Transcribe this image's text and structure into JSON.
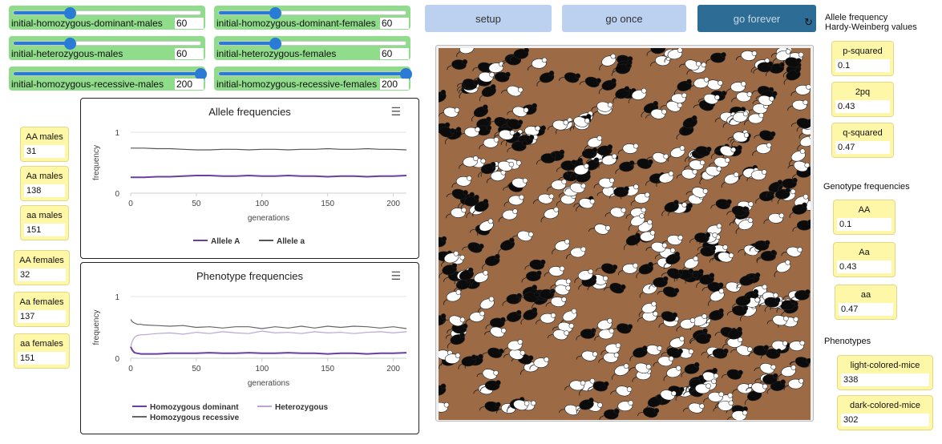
{
  "sliders": [
    {
      "id": "initial-homozygous-dominant-males",
      "label": "initial-homozygous-dominant-males",
      "value": "60",
      "fraction": 0.3
    },
    {
      "id": "initial-homozygous-dominant-females",
      "label": "initial-homozygous-dominant-females",
      "value": "60",
      "fraction": 0.3
    },
    {
      "id": "initial-heterozygous-males",
      "label": "initial-heterozygous-males",
      "value": "60",
      "fraction": 0.3
    },
    {
      "id": "initial-heterozygous-females",
      "label": "initial-heterozygous-females",
      "value": "60",
      "fraction": 0.3
    },
    {
      "id": "initial-homozygous-recessive-males",
      "label": "initial-homozygous-recessive-males",
      "value": "200",
      "fraction": 1.0
    },
    {
      "id": "initial-homozygous-recessive-females",
      "label": "initial-homozygous-recessive-females",
      "value": "200",
      "fraction": 1.0
    }
  ],
  "buttons": {
    "setup": "setup",
    "go_once": "go once",
    "go_forever": "go forever",
    "go_forever_icon": "reload-icon"
  },
  "left_monitors": [
    {
      "label": "AA males",
      "value": "31"
    },
    {
      "label": "Aa males",
      "value": "138"
    },
    {
      "label": "aa males",
      "value": "151"
    },
    {
      "label": "AA females",
      "value": "32"
    },
    {
      "label": "Aa females",
      "value": "137"
    },
    {
      "label": "aa females",
      "value": "151"
    }
  ],
  "right_panel": {
    "hw_note_line1": "Allele frequency",
    "hw_note_line2": "Hardy-Weinberg values",
    "hw_monitors": [
      {
        "label": "p-squared",
        "value": "0.1"
      },
      {
        "label": "2pq",
        "value": "0.43"
      },
      {
        "label": "q-squared",
        "value": "0.47"
      }
    ],
    "genotype_note": "Genotype frequencies",
    "genotype_monitors": [
      {
        "label": "AA",
        "value": "0.1"
      },
      {
        "label": "Aa",
        "value": "0.43"
      },
      {
        "label": "aa",
        "value": "0.47"
      }
    ],
    "phenotype_note": "Phenotypes",
    "phenotype_monitors": [
      {
        "label": "light-colored-mice",
        "value": "338"
      },
      {
        "label": "dark-colored-mice",
        "value": "302"
      }
    ]
  },
  "colors": {
    "slider_bg": "#8fdc8a",
    "slider_accent": "#2a7bd6",
    "button_light": "#bcd0f0",
    "button_dark": "#2d6d95",
    "monitor_bg": "#fff7a8",
    "world_ground": "#9c6a44",
    "allele_A": "#6a3fa0",
    "allele_a": "#555555",
    "pheno_dominant": "#6a3fa0",
    "pheno_het": "#b9a6d6",
    "pheno_recessive": "#666666"
  },
  "chart_data": [
    {
      "type": "line",
      "title": "Allele frequencies",
      "xlabel": "generations",
      "ylabel": "frequency",
      "xlim": [
        0,
        210
      ],
      "ylim": [
        0,
        1
      ],
      "xticks": [
        "0",
        "50",
        "100",
        "150",
        "200"
      ],
      "yticks": [
        "0",
        "1"
      ],
      "grid": true,
      "legend_position": "bottom",
      "menu_icon": "hamburger-menu-icon",
      "series": [
        {
          "name": "Allele A",
          "color": "#6a3fa0",
          "x": [
            0,
            10,
            20,
            30,
            40,
            50,
            60,
            70,
            80,
            90,
            100,
            110,
            120,
            130,
            140,
            150,
            160,
            170,
            180,
            190,
            200,
            210
          ],
          "y": [
            0.26,
            0.26,
            0.27,
            0.27,
            0.28,
            0.29,
            0.29,
            0.28,
            0.28,
            0.29,
            0.28,
            0.28,
            0.29,
            0.28,
            0.28,
            0.27,
            0.28,
            0.28,
            0.27,
            0.28,
            0.28,
            0.29
          ]
        },
        {
          "name": "Allele a",
          "color": "#555555",
          "x": [
            0,
            10,
            20,
            30,
            40,
            50,
            60,
            70,
            80,
            90,
            100,
            110,
            120,
            130,
            140,
            150,
            160,
            170,
            180,
            190,
            200,
            210
          ],
          "y": [
            0.74,
            0.74,
            0.73,
            0.73,
            0.72,
            0.71,
            0.71,
            0.72,
            0.72,
            0.71,
            0.72,
            0.72,
            0.71,
            0.72,
            0.72,
            0.73,
            0.72,
            0.72,
            0.73,
            0.72,
            0.72,
            0.71
          ]
        }
      ]
    },
    {
      "type": "line",
      "title": "Phenotype frequencies",
      "xlabel": "generations",
      "ylabel": "frequency",
      "xlim": [
        0,
        210
      ],
      "ylim": [
        0,
        1
      ],
      "xticks": [
        "0",
        "50",
        "100",
        "150",
        "200"
      ],
      "yticks": [
        "0",
        "1"
      ],
      "grid": true,
      "legend_position": "bottom",
      "menu_icon": "hamburger-menu-icon",
      "series": [
        {
          "name": "Homozygous dominant",
          "color": "#6a3fa0",
          "x": [
            0,
            1,
            2,
            3,
            5,
            8,
            10,
            20,
            30,
            40,
            50,
            60,
            70,
            80,
            90,
            100,
            110,
            120,
            130,
            140,
            150,
            160,
            170,
            180,
            190,
            200,
            210
          ],
          "y": [
            0.19,
            0.14,
            0.11,
            0.09,
            0.08,
            0.07,
            0.07,
            0.07,
            0.08,
            0.08,
            0.08,
            0.09,
            0.08,
            0.08,
            0.09,
            0.08,
            0.08,
            0.09,
            0.08,
            0.08,
            0.07,
            0.08,
            0.08,
            0.07,
            0.08,
            0.08,
            0.09
          ]
        },
        {
          "name": "Heterozygous",
          "color": "#b9a6d6",
          "x": [
            0,
            1,
            2,
            3,
            5,
            8,
            10,
            20,
            30,
            40,
            50,
            60,
            70,
            80,
            90,
            100,
            110,
            120,
            130,
            140,
            150,
            160,
            170,
            180,
            190,
            200,
            210
          ],
          "y": [
            0.18,
            0.26,
            0.31,
            0.34,
            0.37,
            0.38,
            0.38,
            0.4,
            0.41,
            0.39,
            0.42,
            0.4,
            0.43,
            0.41,
            0.4,
            0.44,
            0.41,
            0.42,
            0.4,
            0.43,
            0.41,
            0.42,
            0.4,
            0.42,
            0.43,
            0.41,
            0.43
          ]
        },
        {
          "name": "Homozygous recessive",
          "color": "#666666",
          "x": [
            0,
            1,
            2,
            3,
            5,
            8,
            10,
            20,
            30,
            40,
            50,
            60,
            70,
            80,
            90,
            100,
            110,
            120,
            130,
            140,
            150,
            160,
            170,
            180,
            190,
            200,
            210
          ],
          "y": [
            0.63,
            0.6,
            0.58,
            0.57,
            0.55,
            0.55,
            0.54,
            0.53,
            0.52,
            0.53,
            0.5,
            0.51,
            0.49,
            0.51,
            0.51,
            0.48,
            0.51,
            0.49,
            0.52,
            0.49,
            0.52,
            0.5,
            0.52,
            0.51,
            0.49,
            0.51,
            0.48
          ]
        }
      ]
    }
  ]
}
